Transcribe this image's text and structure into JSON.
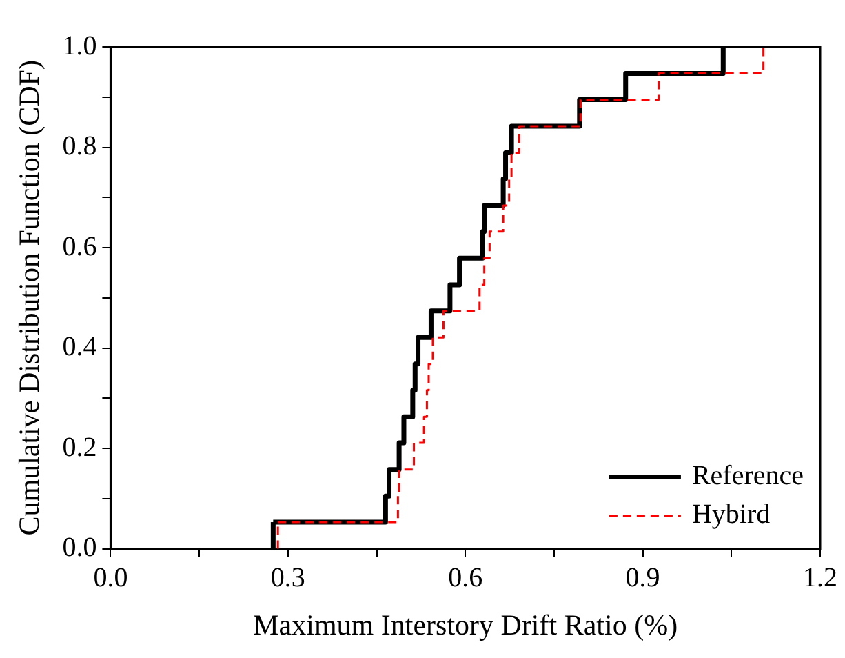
{
  "chart_data": {
    "type": "step",
    "xlabel": "Maximum Interstory Drift Ratio (%)",
    "ylabel": "Cumulative Distribution Function (CDF)",
    "xlim": [
      0,
      1.2
    ],
    "xticks": [
      {
        "value": 0,
        "label": "0.0"
      },
      {
        "value": 0.15,
        "label": null
      },
      {
        "value": 0.3,
        "label": "0.3"
      },
      {
        "value": 0.45,
        "label": null
      },
      {
        "value": 0.6,
        "label": "0.6"
      },
      {
        "value": 0.75,
        "label": null
      },
      {
        "value": 0.9,
        "label": "0.9"
      },
      {
        "value": 1.05,
        "label": null
      },
      {
        "value": 1.2,
        "label": "1.2"
      }
    ],
    "ylim": [
      0,
      1
    ],
    "yticks": [
      {
        "value": 0,
        "label": "0.0"
      },
      {
        "value": 0.1,
        "label": null
      },
      {
        "value": 0.2,
        "label": "0.2"
      },
      {
        "value": 0.3,
        "label": null
      },
      {
        "value": 0.4,
        "label": "0.4"
      },
      {
        "value": 0.5,
        "label": null
      },
      {
        "value": 0.6,
        "label": "0.6"
      },
      {
        "value": 0.7,
        "label": null
      },
      {
        "value": 0.8,
        "label": "0.8"
      },
      {
        "value": 0.9,
        "label": null
      },
      {
        "value": 1,
        "label": "1.0"
      }
    ],
    "grid": false,
    "legend": "bottom right",
    "marker": "none",
    "series": [
      {
        "name": "Reference",
        "color": "#000000",
        "line_style": "solid",
        "x": [
          0.275,
          0.465,
          0.471,
          0.488,
          0.496,
          0.511,
          0.515,
          0.52,
          0.542,
          0.574,
          0.59,
          0.629,
          0.632,
          0.664,
          0.668,
          0.678,
          0.793,
          0.871,
          1.036
        ],
        "values": [
          0.053,
          0.105,
          0.158,
          0.211,
          0.263,
          0.316,
          0.368,
          0.421,
          0.474,
          0.526,
          0.579,
          0.632,
          0.684,
          0.737,
          0.789,
          0.842,
          0.895,
          0.947,
          1.0
        ]
      },
      {
        "name": "Hybird",
        "color": "#ff0000",
        "line_style": "dashed",
        "x": [
          0.283,
          0.486,
          0.488,
          0.513,
          0.53,
          0.535,
          0.538,
          0.545,
          0.563,
          0.624,
          0.632,
          0.641,
          0.664,
          0.674,
          0.678,
          0.691,
          0.795,
          0.927,
          1.104
        ],
        "values": [
          0.053,
          0.105,
          0.158,
          0.211,
          0.263,
          0.316,
          0.368,
          0.421,
          0.474,
          0.526,
          0.579,
          0.632,
          0.684,
          0.737,
          0.789,
          0.842,
          0.895,
          0.947,
          1.0
        ]
      }
    ]
  }
}
